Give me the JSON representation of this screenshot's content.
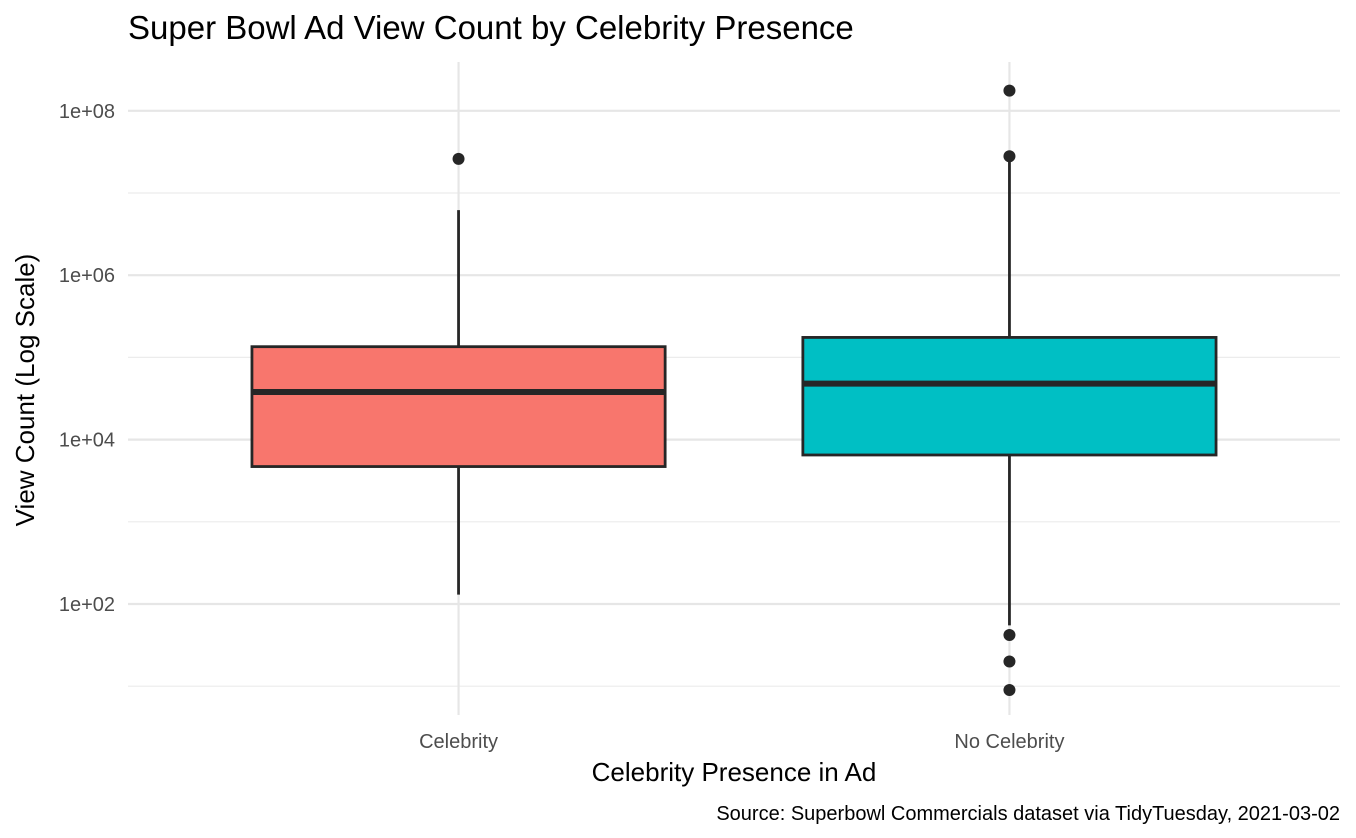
{
  "chart_data": {
    "type": "boxplot",
    "title": "Super Bowl Ad View Count by Celebrity Presence",
    "xlabel": "Celebrity Presence in Ad",
    "ylabel": "View Count (Log Scale)",
    "caption": "Source: Superbowl Commercials dataset via TidyTuesday, 2021-03-02",
    "y_scale": "log10",
    "ylim": [
      5,
      300000000
    ],
    "y_ticks": [
      100,
      10000,
      1000000,
      100000000
    ],
    "y_tick_labels": [
      "1e+02",
      "1e+04",
      "1e+06",
      "1e+08"
    ],
    "grid": true,
    "legend": "none",
    "categories": [
      "Celebrity",
      "No Celebrity"
    ],
    "boxes": [
      {
        "category": "Celebrity",
        "color": "#F8766D",
        "whisker_low": 130,
        "q1": 4700,
        "median": 38000,
        "q3": 135000,
        "whisker_high": 6200000,
        "outliers": [
          26000000
        ]
      },
      {
        "category": "No Celebrity",
        "color": "#00BFC4",
        "whisker_low": 55,
        "q1": 6500,
        "median": 48000,
        "q3": 175000,
        "whisker_high": 24000000,
        "outliers": [
          176000000,
          28000000,
          42,
          20,
          9
        ]
      }
    ]
  }
}
